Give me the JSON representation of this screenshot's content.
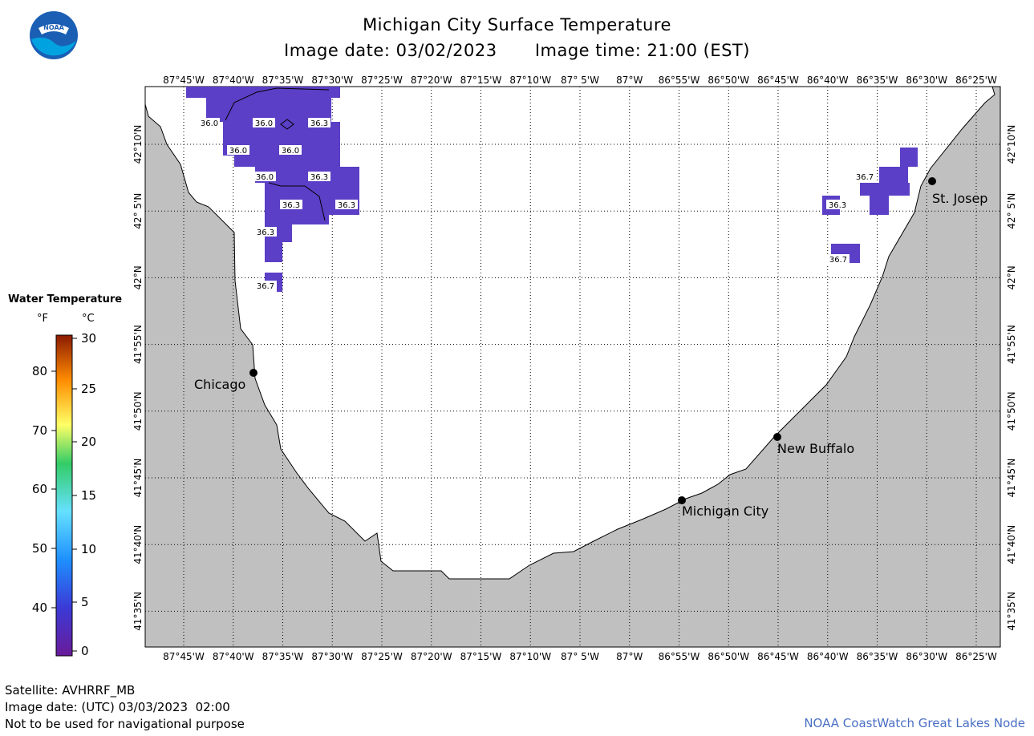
{
  "header": {
    "title": "Michigan City Surface Temperature",
    "image_date": "Image date: 03/02/2023",
    "image_time": "Image time: 21:00 (EST)"
  },
  "logo": {
    "text": "NOAA",
    "icon": "noaa-logo-icon"
  },
  "map": {
    "lon_labels": [
      "87°45'W",
      "87°40'W",
      "87°35'W",
      "87°30'W",
      "87°25'W",
      "87°20'W",
      "87°15'W",
      "87°10'W",
      "87° 5'W",
      "87°W",
      "86°55'W",
      "86°50'W",
      "86°45'W",
      "86°40'W",
      "86°35'W",
      "86°30'W",
      "86°25'W"
    ],
    "lat_labels": [
      "42°10'N",
      "42° 5'N",
      "42°N",
      "41°55'N",
      "41°50'N",
      "41°45'N",
      "41°40'N",
      "41°35'N"
    ],
    "cities": [
      {
        "name": "Chicago"
      },
      {
        "name": "St. Josep"
      },
      {
        "name": "New Buffalo"
      },
      {
        "name": "Michigan City"
      }
    ],
    "temperature_labels": [
      "36.0",
      "36.0",
      "36.3",
      "36.0",
      "36.0",
      "36.0",
      "36.3",
      "36.3",
      "36.3",
      "36.3",
      "36.7",
      "36.7",
      "36.3",
      "36.7"
    ],
    "colors": {
      "land": "#c0c0c0",
      "water": "#ffffff",
      "warm_pixel": "#5b3fc6",
      "grid": "#000000"
    }
  },
  "legend": {
    "title": "Water Temperature",
    "unit_f": "°F",
    "unit_c": "°C",
    "f_ticks": [
      "80",
      "70",
      "60",
      "50",
      "40"
    ],
    "c_ticks": [
      "30",
      "25",
      "20",
      "15",
      "10",
      "5",
      "0"
    ]
  },
  "footer": {
    "satellite": "Satellite: AVHRRF_MB",
    "utc_date": "Image date: (UTC) 03/03/2023  02:00",
    "disclaimer": "Not to be used for navigational purpose",
    "credit": "NOAA CoastWatch Great Lakes Node"
  }
}
